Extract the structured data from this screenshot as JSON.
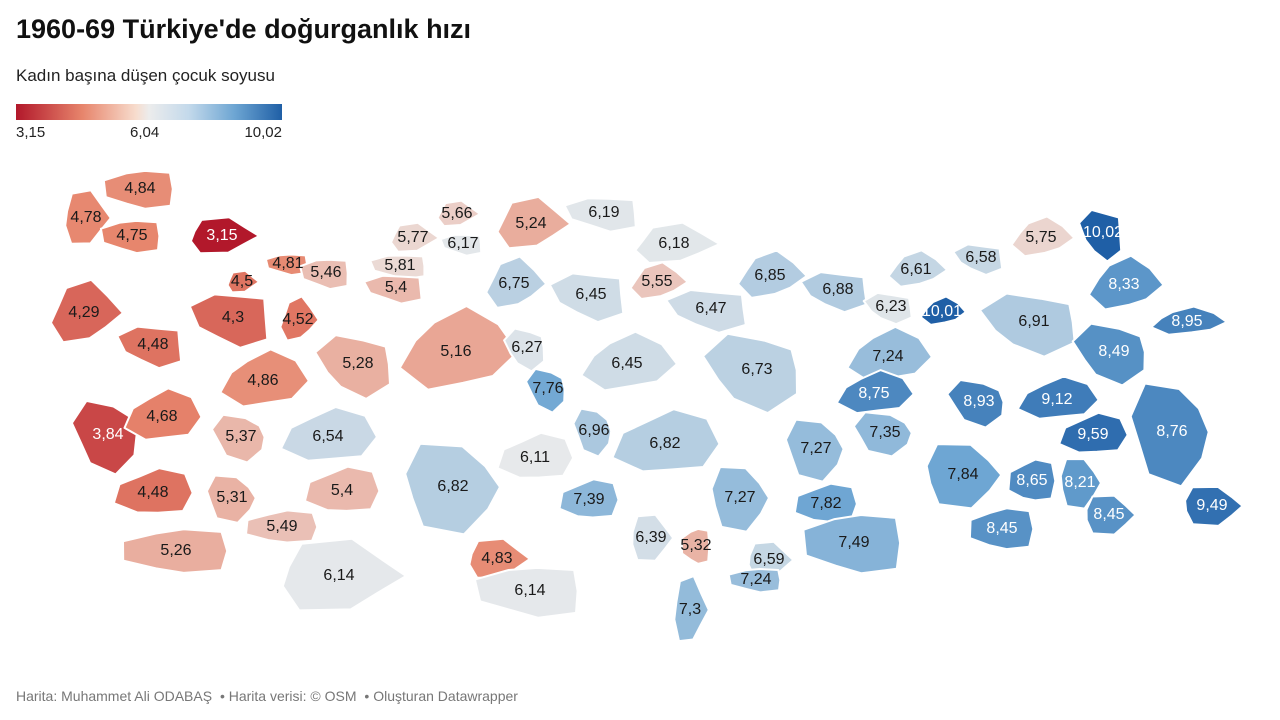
{
  "title": "1960-69 Türkiye'de doğurganlık hızı",
  "subtitle": "Kadın başına düşen çocuk soyusu",
  "legend": {
    "min_label": "3,15",
    "mid_label": "6,04",
    "max_label": "10,02",
    "min": 3.15,
    "mid": 6.04,
    "max": 10.02,
    "colors": {
      "low": "#b2182b",
      "mid": "#ececec",
      "high": "#1f5fa6"
    }
  },
  "footer": {
    "author": "Harita: Muhammet Ali ODABAŞ",
    "data_source": "• Harita verisi: © OSM",
    "tool": "• Oluşturan Datawrapper"
  },
  "provinces": [
    {
      "label": "4,84",
      "value": 4.84
    },
    {
      "label": "4,78",
      "value": 4.78
    },
    {
      "label": "4,75",
      "value": 4.75
    },
    {
      "label": "3,15",
      "value": 3.15
    },
    {
      "label": "4,81",
      "value": 4.81
    },
    {
      "label": "4,5",
      "value": 4.5
    },
    {
      "label": "5,46",
      "value": 5.46
    },
    {
      "label": "5,77",
      "value": 5.77
    },
    {
      "label": "5,81",
      "value": 5.81
    },
    {
      "label": "5,66",
      "value": 5.66
    },
    {
      "label": "6,17",
      "value": 6.17
    },
    {
      "label": "5,24",
      "value": 5.24
    },
    {
      "label": "6,19",
      "value": 6.19
    },
    {
      "label": "6,18",
      "value": 6.18
    },
    {
      "label": "5,4",
      "value": 5.4
    },
    {
      "label": "4,29",
      "value": 4.29
    },
    {
      "label": "4,3",
      "value": 4.3
    },
    {
      "label": "4,52",
      "value": 4.52
    },
    {
      "label": "4,48",
      "value": 4.48
    },
    {
      "label": "6,75",
      "value": 6.75
    },
    {
      "label": "6,45",
      "value": 6.45
    },
    {
      "label": "5,55",
      "value": 5.55
    },
    {
      "label": "6,47",
      "value": 6.47
    },
    {
      "label": "6,85",
      "value": 6.85
    },
    {
      "label": "6,88",
      "value": 6.88
    },
    {
      "label": "6,61",
      "value": 6.61
    },
    {
      "label": "6,58",
      "value": 6.58
    },
    {
      "label": "5,75",
      "value": 5.75
    },
    {
      "label": "10,02",
      "value": 10.02
    },
    {
      "label": "8,33",
      "value": 8.33
    },
    {
      "label": "6,23",
      "value": 6.23
    },
    {
      "label": "10,01",
      "value": 10.01
    },
    {
      "label": "6,91",
      "value": 6.91
    },
    {
      "label": "8,95",
      "value": 8.95
    },
    {
      "label": "5,28",
      "value": 5.28
    },
    {
      "label": "5,16",
      "value": 5.16
    },
    {
      "label": "6,27",
      "value": 6.27
    },
    {
      "label": "6,45",
      "value": 6.45
    },
    {
      "label": "6,73",
      "value": 6.73
    },
    {
      "label": "7,24",
      "value": 7.24
    },
    {
      "label": "8,49",
      "value": 8.49
    },
    {
      "label": "4,86",
      "value": 4.86
    },
    {
      "label": "7,76",
      "value": 7.76
    },
    {
      "label": "8,75",
      "value": 8.75
    },
    {
      "label": "8,93",
      "value": 8.93
    },
    {
      "label": "9,12",
      "value": 9.12
    },
    {
      "label": "3,84",
      "value": 3.84
    },
    {
      "label": "4,68",
      "value": 4.68
    },
    {
      "label": "5,37",
      "value": 5.37
    },
    {
      "label": "6,54",
      "value": 6.54
    },
    {
      "label": "6,96",
      "value": 6.96
    },
    {
      "label": "6,82",
      "value": 6.82
    },
    {
      "label": "7,35",
      "value": 7.35
    },
    {
      "label": "9,59",
      "value": 9.59
    },
    {
      "label": "8,76",
      "value": 8.76
    },
    {
      "label": "6,11",
      "value": 6.11
    },
    {
      "label": "7,27",
      "value": 7.27
    },
    {
      "label": "4,48",
      "value": 4.48
    },
    {
      "label": "5,31",
      "value": 5.31
    },
    {
      "label": "5,4",
      "value": 5.4
    },
    {
      "label": "6,82",
      "value": 6.82
    },
    {
      "label": "7,39",
      "value": 7.39
    },
    {
      "label": "7,27",
      "value": 7.27
    },
    {
      "label": "7,82",
      "value": 7.82
    },
    {
      "label": "7,84",
      "value": 7.84
    },
    {
      "label": "8,65",
      "value": 8.65
    },
    {
      "label": "8,21",
      "value": 8.21
    },
    {
      "label": "5,49",
      "value": 5.49
    },
    {
      "label": "9,49",
      "value": 9.49
    },
    {
      "label": "8,45",
      "value": 8.45
    },
    {
      "label": "8,45",
      "value": 8.45
    },
    {
      "label": "5,26",
      "value": 5.26
    },
    {
      "label": "6,39",
      "value": 6.39
    },
    {
      "label": "5,32",
      "value": 5.32
    },
    {
      "label": "6,59",
      "value": 6.59
    },
    {
      "label": "7,49",
      "value": 7.49
    },
    {
      "label": "4,83",
      "value": 4.83
    },
    {
      "label": "7,24",
      "value": 7.24
    },
    {
      "label": "6,14",
      "value": 6.14
    },
    {
      "label": "6,14",
      "value": 6.14
    },
    {
      "label": "7,3",
      "value": 7.3
    }
  ]
}
